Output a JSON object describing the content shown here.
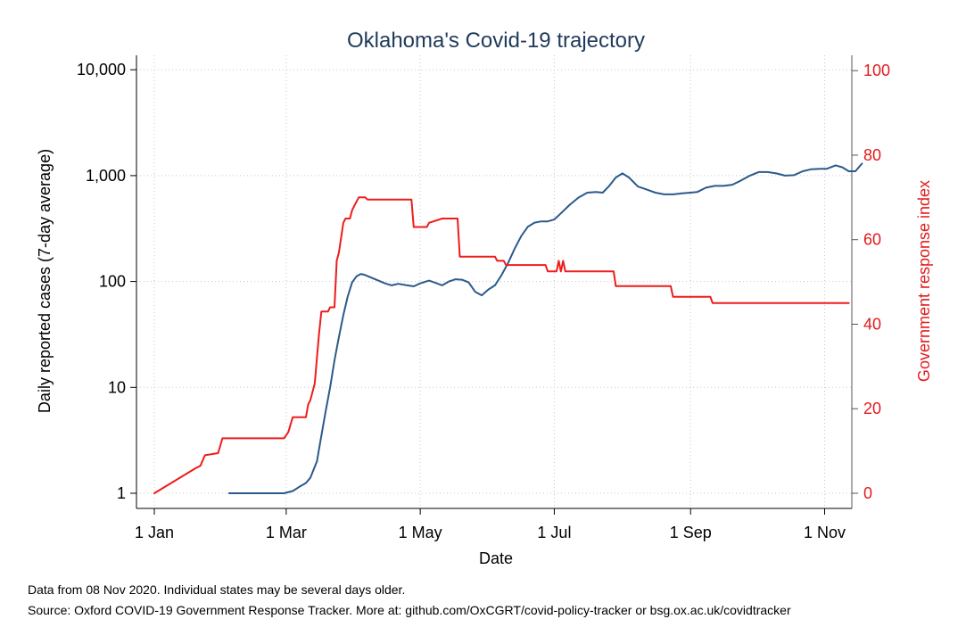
{
  "chart_data": {
    "type": "line",
    "title": "Oklahoma's Covid-19 trajectory",
    "xlabel": "Date",
    "ylabel_left": "Daily reported cases (7-day average)",
    "ylabel_right": "Government response index",
    "left_axis": {
      "scale": "log",
      "ylim": [
        1,
        10000
      ],
      "ticks": [
        1,
        10,
        100,
        1000,
        10000
      ],
      "tick_labels": [
        "1",
        "10",
        "100",
        "1,000",
        "10,000"
      ]
    },
    "right_axis": {
      "scale": "linear",
      "ylim": [
        0,
        100
      ],
      "ticks": [
        0,
        20,
        40,
        60,
        80,
        100
      ],
      "tick_labels": [
        "0",
        "20",
        "40",
        "60",
        "80",
        "100"
      ]
    },
    "x_axis": {
      "range": [
        "2020-01-01",
        "2020-11-06"
      ],
      "ticks": [
        "2020-01-01",
        "2020-03-01",
        "2020-05-01",
        "2020-07-01",
        "2020-09-01",
        "2020-11-01"
      ],
      "tick_labels": [
        "1 Jan",
        "1 Mar",
        "1 May",
        "1 Jul",
        "1 Sep",
        "1 Nov"
      ]
    },
    "grid": true,
    "series": [
      {
        "axis": "left",
        "color": "#2b5a8a",
        "values": [
          [
            "2020-02-04",
            1
          ],
          [
            "2020-02-20",
            1
          ],
          [
            "2020-02-29",
            1
          ],
          [
            "2020-03-04",
            1.05
          ],
          [
            "2020-03-07",
            1.15
          ],
          [
            "2020-03-10",
            1.25
          ],
          [
            "2020-03-12",
            1.4
          ],
          [
            "2020-03-15",
            2
          ],
          [
            "2020-03-17",
            3.5
          ],
          [
            "2020-03-19",
            6
          ],
          [
            "2020-03-21",
            10
          ],
          [
            "2020-03-23",
            18
          ],
          [
            "2020-03-25",
            30
          ],
          [
            "2020-03-27",
            48
          ],
          [
            "2020-03-29",
            72
          ],
          [
            "2020-03-31",
            98
          ],
          [
            "2020-04-02",
            112
          ],
          [
            "2020-04-04",
            118
          ],
          [
            "2020-04-06",
            115
          ],
          [
            "2020-04-10",
            106
          ],
          [
            "2020-04-15",
            96
          ],
          [
            "2020-04-18",
            92
          ],
          [
            "2020-04-21",
            95
          ],
          [
            "2020-04-25",
            92
          ],
          [
            "2020-04-28",
            90
          ],
          [
            "2020-05-01",
            96
          ],
          [
            "2020-05-05",
            102
          ],
          [
            "2020-05-08",
            97
          ],
          [
            "2020-05-11",
            92
          ],
          [
            "2020-05-14",
            100
          ],
          [
            "2020-05-17",
            105
          ],
          [
            "2020-05-20",
            104
          ],
          [
            "2020-05-23",
            98
          ],
          [
            "2020-05-26",
            80
          ],
          [
            "2020-05-29",
            74
          ],
          [
            "2020-06-01",
            84
          ],
          [
            "2020-06-04",
            92
          ],
          [
            "2020-06-07",
            115
          ],
          [
            "2020-06-10",
            150
          ],
          [
            "2020-06-13",
            205
          ],
          [
            "2020-06-16",
            270
          ],
          [
            "2020-06-19",
            330
          ],
          [
            "2020-06-22",
            360
          ],
          [
            "2020-06-25",
            370
          ],
          [
            "2020-06-28",
            370
          ],
          [
            "2020-07-01",
            385
          ],
          [
            "2020-07-04",
            440
          ],
          [
            "2020-07-08",
            530
          ],
          [
            "2020-07-12",
            620
          ],
          [
            "2020-07-16",
            690
          ],
          [
            "2020-07-20",
            700
          ],
          [
            "2020-07-23",
            690
          ],
          [
            "2020-07-26",
            800
          ],
          [
            "2020-07-29",
            960
          ],
          [
            "2020-08-01",
            1050
          ],
          [
            "2020-08-04",
            960
          ],
          [
            "2020-08-08",
            790
          ],
          [
            "2020-08-12",
            740
          ],
          [
            "2020-08-16",
            690
          ],
          [
            "2020-08-20",
            665
          ],
          [
            "2020-08-24",
            665
          ],
          [
            "2020-08-28",
            680
          ],
          [
            "2020-09-01",
            690
          ],
          [
            "2020-09-04",
            700
          ],
          [
            "2020-09-08",
            770
          ],
          [
            "2020-09-12",
            800
          ],
          [
            "2020-09-16",
            800
          ],
          [
            "2020-09-20",
            820
          ],
          [
            "2020-09-24",
            900
          ],
          [
            "2020-09-28",
            1000
          ],
          [
            "2020-10-02",
            1080
          ],
          [
            "2020-10-06",
            1080
          ],
          [
            "2020-10-10",
            1050
          ],
          [
            "2020-10-14",
            1000
          ],
          [
            "2020-10-18",
            1010
          ],
          [
            "2020-10-22",
            1100
          ],
          [
            "2020-10-26",
            1150
          ],
          [
            "2020-10-30",
            1160
          ],
          [
            "2020-11-02",
            1160
          ],
          [
            "2020-11-06",
            1250
          ],
          [
            "2020-11-09",
            1200
          ],
          [
            "2020-11-12",
            1100
          ],
          [
            "2020-11-15",
            1100
          ],
          [
            "2020-11-18",
            1300
          ]
        ]
      },
      {
        "axis": "right",
        "color": "#ee1c1c",
        "step": true,
        "values": [
          [
            "2020-01-01",
            0
          ],
          [
            "2020-01-20",
            6
          ],
          [
            "2020-01-22",
            6.5
          ],
          [
            "2020-01-24",
            9
          ],
          [
            "2020-01-30",
            9.5
          ],
          [
            "2020-02-01",
            13
          ],
          [
            "2020-02-29",
            13
          ],
          [
            "2020-03-02",
            14.5
          ],
          [
            "2020-03-04",
            18
          ],
          [
            "2020-03-10",
            18
          ],
          [
            "2020-03-11",
            21
          ],
          [
            "2020-03-12",
            22
          ],
          [
            "2020-03-13",
            24
          ],
          [
            "2020-03-14",
            26
          ],
          [
            "2020-03-15",
            32
          ],
          [
            "2020-03-16",
            38
          ],
          [
            "2020-03-17",
            43
          ],
          [
            "2020-03-20",
            43
          ],
          [
            "2020-03-21",
            44
          ],
          [
            "2020-03-23",
            44
          ],
          [
            "2020-03-24",
            55
          ],
          [
            "2020-03-25",
            57
          ],
          [
            "2020-03-27",
            64
          ],
          [
            "2020-03-28",
            65
          ],
          [
            "2020-03-30",
            65
          ],
          [
            "2020-03-31",
            67
          ],
          [
            "2020-04-01",
            68
          ],
          [
            "2020-04-03",
            70
          ],
          [
            "2020-04-06",
            70
          ],
          [
            "2020-04-07",
            69.5
          ],
          [
            "2020-04-27",
            69.5
          ],
          [
            "2020-04-28",
            63
          ],
          [
            "2020-05-04",
            63
          ],
          [
            "2020-05-05",
            64
          ],
          [
            "2020-05-11",
            65
          ],
          [
            "2020-05-18",
            65
          ],
          [
            "2020-05-19",
            56
          ],
          [
            "2020-06-04",
            56
          ],
          [
            "2020-06-05",
            55
          ],
          [
            "2020-06-08",
            55
          ],
          [
            "2020-06-09",
            54
          ],
          [
            "2020-06-27",
            54
          ],
          [
            "2020-06-28",
            52.5
          ],
          [
            "2020-07-02",
            52.5
          ],
          [
            "2020-07-03",
            55
          ],
          [
            "2020-07-04",
            52.5
          ],
          [
            "2020-07-05",
            55
          ],
          [
            "2020-07-06",
            52.5
          ],
          [
            "2020-07-28",
            52.5
          ],
          [
            "2020-07-29",
            49
          ],
          [
            "2020-08-23",
            49
          ],
          [
            "2020-08-24",
            46.5
          ],
          [
            "2020-09-10",
            46.5
          ],
          [
            "2020-09-11",
            45
          ],
          [
            "2020-11-12",
            45
          ]
        ]
      }
    ],
    "notes": [
      "Data from 08 Nov 2020. Individual states may be several days older.",
      "Source: Oxford COVID-19 Government Response Tracker. More at: github.com/OxCGRT/covid-policy-tracker or bsg.ox.ac.uk/covidtracker"
    ]
  }
}
